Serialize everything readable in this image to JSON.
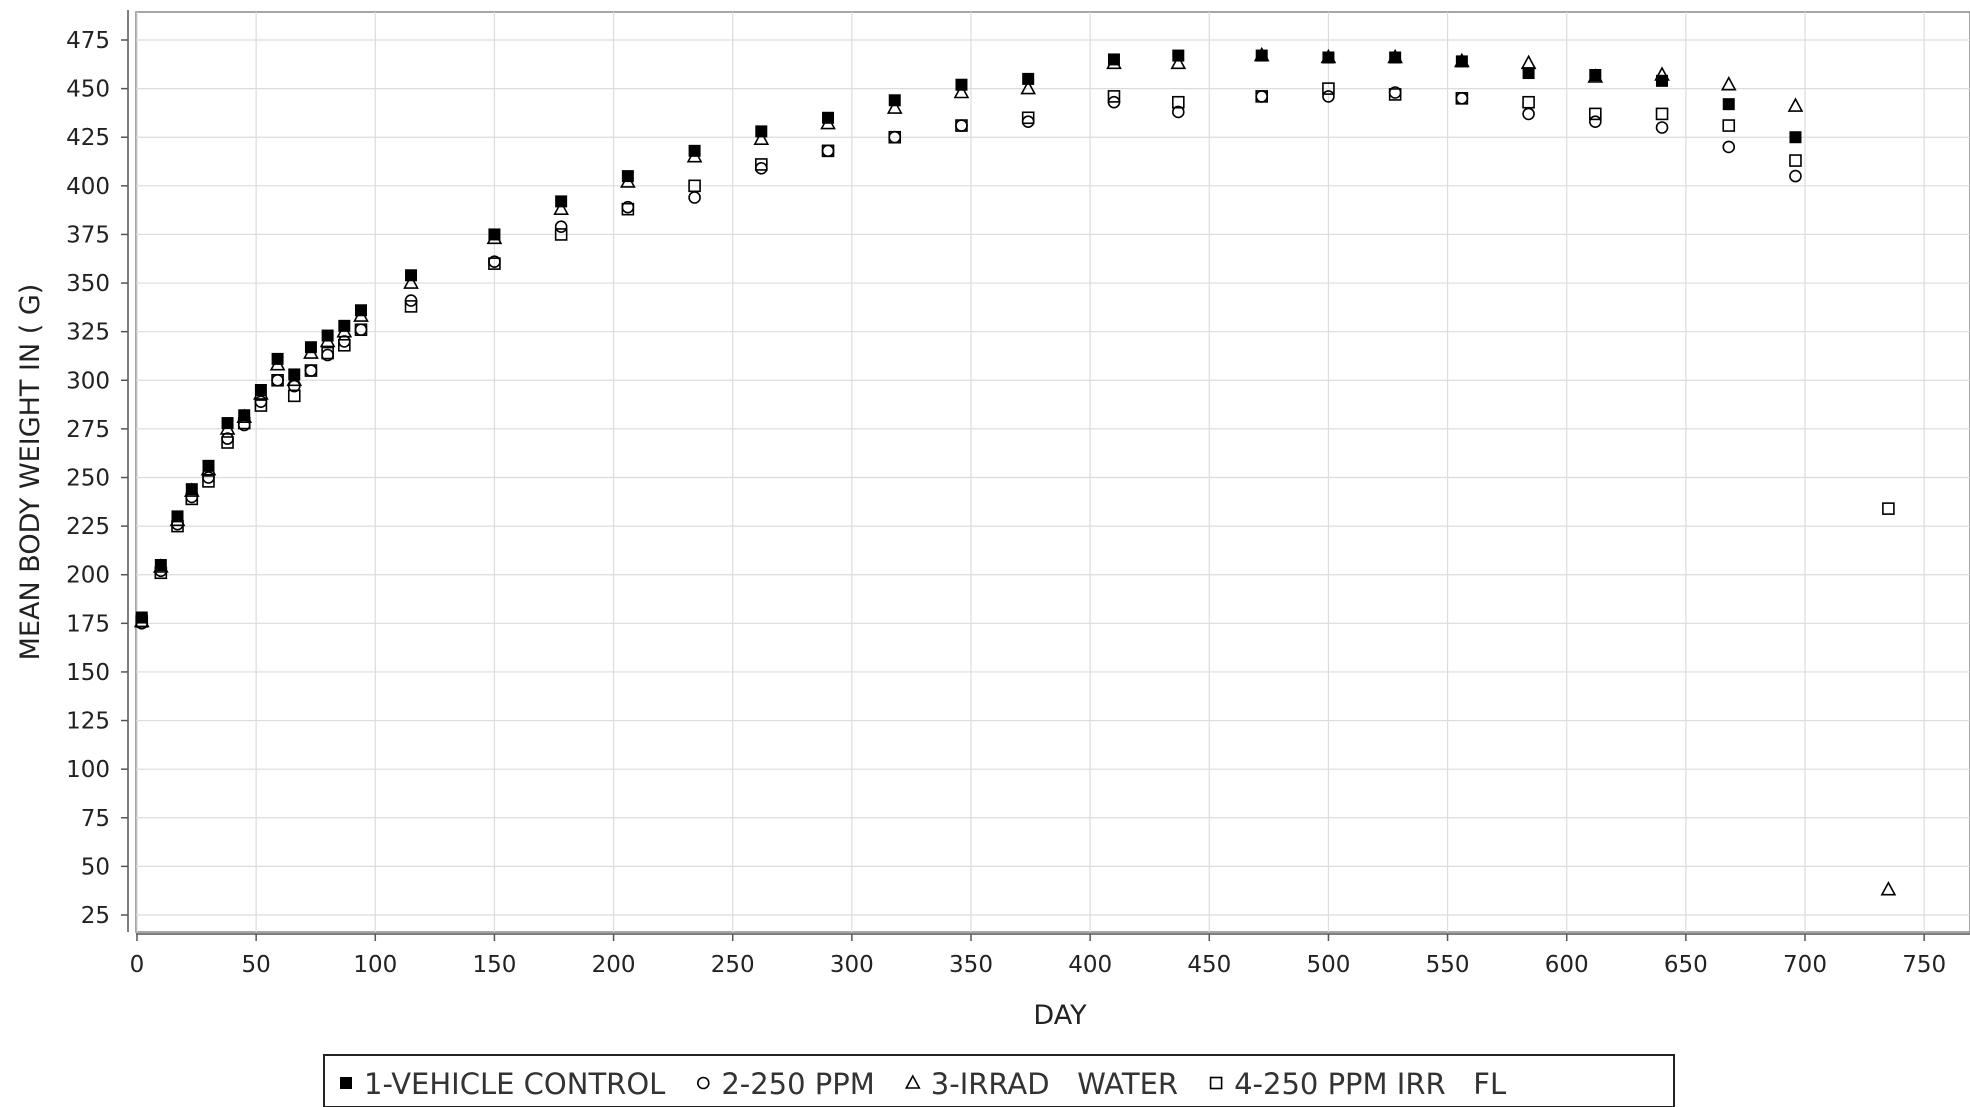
{
  "chart_data": {
    "type": "scatter",
    "title": "",
    "xlabel": "DAY",
    "ylabel": "MEAN BODY WEIGHT IN ( G)",
    "xlim": [
      0,
      765
    ],
    "ylim": [
      12,
      489
    ],
    "xticks": [
      0,
      50,
      100,
      150,
      200,
      250,
      300,
      350,
      400,
      450,
      500,
      550,
      600,
      650,
      700,
      750
    ],
    "yticks": [
      25,
      50,
      75,
      100,
      125,
      150,
      175,
      200,
      225,
      250,
      275,
      300,
      325,
      350,
      375,
      400,
      425,
      450,
      475
    ],
    "grid": true,
    "legend_position": "bottom",
    "series": [
      {
        "name": "1-VEHICLE CONTROL",
        "marker": "filled-square",
        "x": [
          2,
          10,
          17,
          23,
          30,
          38,
          45,
          52,
          59,
          66,
          73,
          80,
          87,
          94,
          115,
          150,
          178,
          206,
          234,
          262,
          290,
          318,
          346,
          374,
          410,
          437,
          472,
          500,
          528,
          556,
          584,
          612,
          640,
          668,
          696
        ],
        "y": [
          178,
          205,
          230,
          244,
          256,
          278,
          282,
          295,
          311,
          303,
          317,
          323,
          328,
          336,
          354,
          375,
          392,
          405,
          418,
          428,
          435,
          444,
          452,
          455,
          465,
          467,
          467,
          466,
          466,
          464,
          458,
          457,
          454,
          442,
          425
        ]
      },
      {
        "name": "2-250 PPM",
        "marker": "open-circle",
        "x": [
          2,
          10,
          17,
          23,
          30,
          38,
          45,
          52,
          59,
          66,
          73,
          80,
          87,
          94,
          115,
          150,
          178,
          206,
          234,
          262,
          290,
          318,
          346,
          374,
          410,
          437,
          472,
          500,
          528,
          556,
          584,
          612,
          640,
          668,
          696
        ],
        "y": [
          175,
          202,
          226,
          240,
          250,
          270,
          277,
          289,
          300,
          297,
          305,
          313,
          320,
          326,
          341,
          361,
          379,
          389,
          394,
          409,
          418,
          425,
          431,
          433,
          443,
          438,
          446,
          446,
          448,
          445,
          437,
          433,
          430,
          420,
          405
        ]
      },
      {
        "name": "3-IRRAD   WATER",
        "marker": "open-triangle",
        "x": [
          2,
          10,
          17,
          23,
          30,
          38,
          45,
          52,
          59,
          66,
          73,
          80,
          87,
          94,
          115,
          150,
          178,
          206,
          234,
          262,
          290,
          318,
          346,
          374,
          410,
          437,
          472,
          500,
          528,
          556,
          584,
          612,
          640,
          668,
          696,
          735
        ],
        "y": [
          176,
          204,
          228,
          243,
          254,
          275,
          281,
          293,
          308,
          300,
          314,
          320,
          325,
          333,
          350,
          373,
          388,
          402,
          415,
          424,
          432,
          440,
          448,
          450,
          463,
          463,
          467,
          466,
          466,
          464,
          463,
          456,
          457,
          452,
          441,
          38
        ]
      },
      {
        "name": "4-250 PPM IRR   FL",
        "marker": "open-square",
        "x": [
          2,
          10,
          17,
          23,
          30,
          38,
          45,
          52,
          59,
          66,
          73,
          80,
          87,
          94,
          115,
          150,
          178,
          206,
          234,
          262,
          290,
          318,
          346,
          374,
          410,
          437,
          472,
          500,
          528,
          556,
          584,
          612,
          640,
          668,
          696,
          735
        ],
        "y": [
          176,
          201,
          225,
          239,
          248,
          268,
          278,
          287,
          300,
          292,
          305,
          314,
          318,
          326,
          338,
          360,
          375,
          388,
          400,
          411,
          418,
          425,
          431,
          435,
          446,
          443,
          446,
          450,
          447,
          445,
          443,
          437,
          437,
          431,
          413,
          234
        ]
      }
    ]
  }
}
